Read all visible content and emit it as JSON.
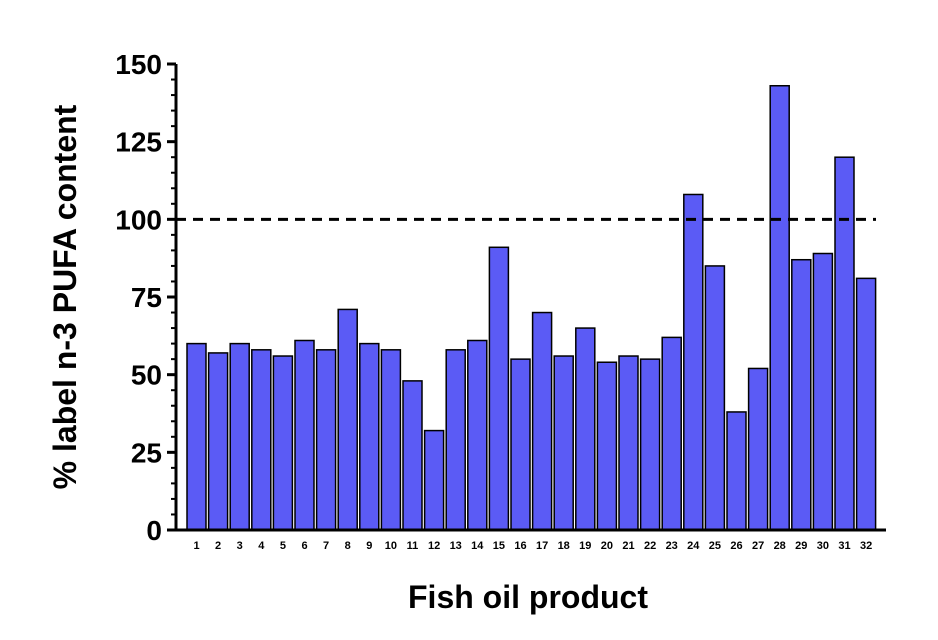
{
  "chart_data": {
    "type": "bar",
    "xlabel": "Fish oil product",
    "ylabel": "% label n-3 PUFA content",
    "ylim": [
      0,
      150
    ],
    "yticks": [
      0,
      25,
      50,
      75,
      100,
      125,
      150
    ],
    "categories": [
      "1",
      "2",
      "3",
      "4",
      "5",
      "6",
      "7",
      "8",
      "9",
      "10",
      "11",
      "12",
      "13",
      "14",
      "15",
      "16",
      "17",
      "18",
      "19",
      "20",
      "21",
      "22",
      "23",
      "24",
      "25",
      "26",
      "27",
      "28",
      "29",
      "30",
      "31",
      "32"
    ],
    "values": [
      60,
      57,
      60,
      58,
      56,
      61,
      58,
      71,
      60,
      58,
      48,
      32,
      58,
      61,
      91,
      55,
      70,
      56,
      65,
      54,
      56,
      55,
      62,
      108,
      85,
      38,
      52,
      143,
      87,
      89,
      120,
      81
    ],
    "reference_line": {
      "y": 100,
      "style": "dashed"
    },
    "grid": false,
    "colors": {
      "bar_fill": "#5b5bf5",
      "bar_stroke": "#000000",
      "axis": "#000000",
      "reference_line": "#000000"
    }
  }
}
